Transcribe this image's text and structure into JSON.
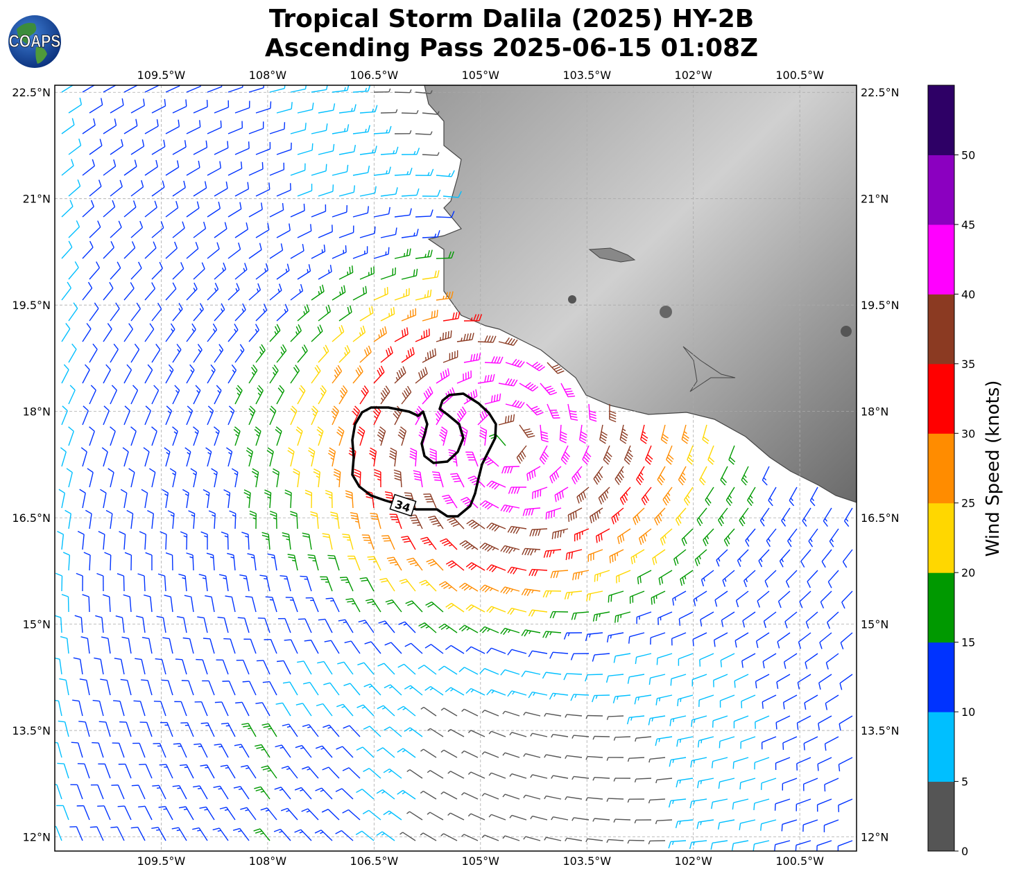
{
  "title_line1": "Tropical Storm Dalila (2025) HY-2B",
  "title_line2": "Ascending Pass 2025-06-15 01:08Z",
  "logo_text": "COAPS",
  "map": {
    "lon_ticks": [
      "109.5°W",
      "108°W",
      "106.5°W",
      "105°W",
      "103.5°W",
      "102°W",
      "100.5°W"
    ],
    "lat_ticks": [
      "22.5°N",
      "21°N",
      "19.5°N",
      "18°N",
      "16.5°N",
      "15°N",
      "13.5°N",
      "12°N"
    ],
    "contour_label": "34",
    "center_lon": -104.6,
    "center_lat": 17.6
  },
  "colorbar": {
    "title": "Wind Speed (knots)",
    "tick_labels": [
      "0",
      "5",
      "10",
      "15",
      "20",
      "25",
      "30",
      "35",
      "40",
      "45",
      "50"
    ],
    "colors": [
      "#555555",
      "#00bfff",
      "#0033ff",
      "#009900",
      "#ffd700",
      "#ff8c00",
      "#ff0000",
      "#8b3a22",
      "#ff00ff",
      "#8b00c0",
      "#2e0066"
    ]
  }
}
